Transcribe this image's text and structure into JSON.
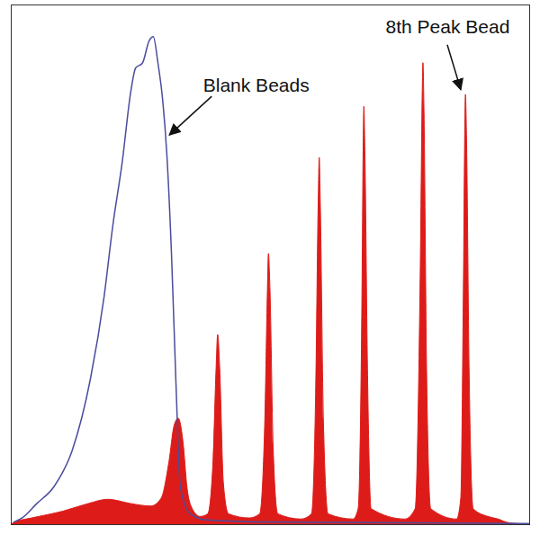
{
  "chart_data": {
    "type": "area",
    "xlim": [
      0,
      1000
    ],
    "ylim": [
      0,
      100
    ],
    "tick_labels": false,
    "grid": false,
    "series": [
      {
        "type": "line",
        "color": "#4b4c9c",
        "x": [
          5,
          22.6,
          48.6,
          83,
          118,
          153,
          179,
          196,
          214,
          231,
          240,
          253,
          266,
          274,
          283,
          292,
          300,
          309,
          318,
          326,
          344,
          378,
          500,
          1000
        ],
        "values": [
          0.5,
          1.4,
          4,
          7.4,
          14.4,
          28.2,
          43.8,
          57.6,
          69.7,
          83.6,
          87.9,
          88.8,
          93.1,
          93.9,
          88.8,
          81.8,
          71.5,
          52.4,
          26.5,
          7.4,
          2.2,
          0.9,
          0.5,
          0.2
        ]
      },
      {
        "type": "area",
        "color": "#dd1c1a",
        "x": [
          0,
          10,
          40,
          100,
          150,
          187,
          230,
          270,
          290,
          305,
          315,
          323,
          332,
          340,
          350,
          365,
          380,
          390,
          396,
          399,
          403,
          410,
          420,
          460,
          480,
          490,
          495,
          497,
          500,
          506,
          515,
          560,
          580,
          588,
          593,
          595,
          597,
          603,
          612,
          660,
          670,
          677,
          680,
          681,
          683,
          688,
          695,
          760,
          780,
          790,
          794,
          795,
          797,
          802,
          810,
          860,
          868,
          873,
          876,
          877,
          879,
          884,
          892,
          920,
          940,
          960,
          1000
        ],
        "values": [
          0,
          0.5,
          1.2,
          2.5,
          4,
          4.8,
          4,
          3.5,
          5,
          12,
          19,
          20.4,
          16,
          7,
          3,
          1.5,
          2,
          12,
          30,
          36.5,
          30,
          8,
          2,
          1.2,
          2,
          20,
          45,
          52.1,
          45,
          15,
          2,
          1,
          2,
          25,
          62,
          70.6,
          62,
          20,
          2,
          1,
          3,
          40,
          75,
          80.4,
          72,
          30,
          3,
          1,
          3,
          50,
          85,
          88.8,
          80,
          30,
          3,
          1,
          5,
          45,
          78,
          82.7,
          75,
          30,
          3,
          1.5,
          1,
          0.3,
          0
        ]
      }
    ],
    "annotations": [
      {
        "text": "Blank Beads",
        "x": 306,
        "y": 74.9
      },
      {
        "text": "8th Peak Bead",
        "x": 868,
        "y": 83.6
      }
    ]
  }
}
